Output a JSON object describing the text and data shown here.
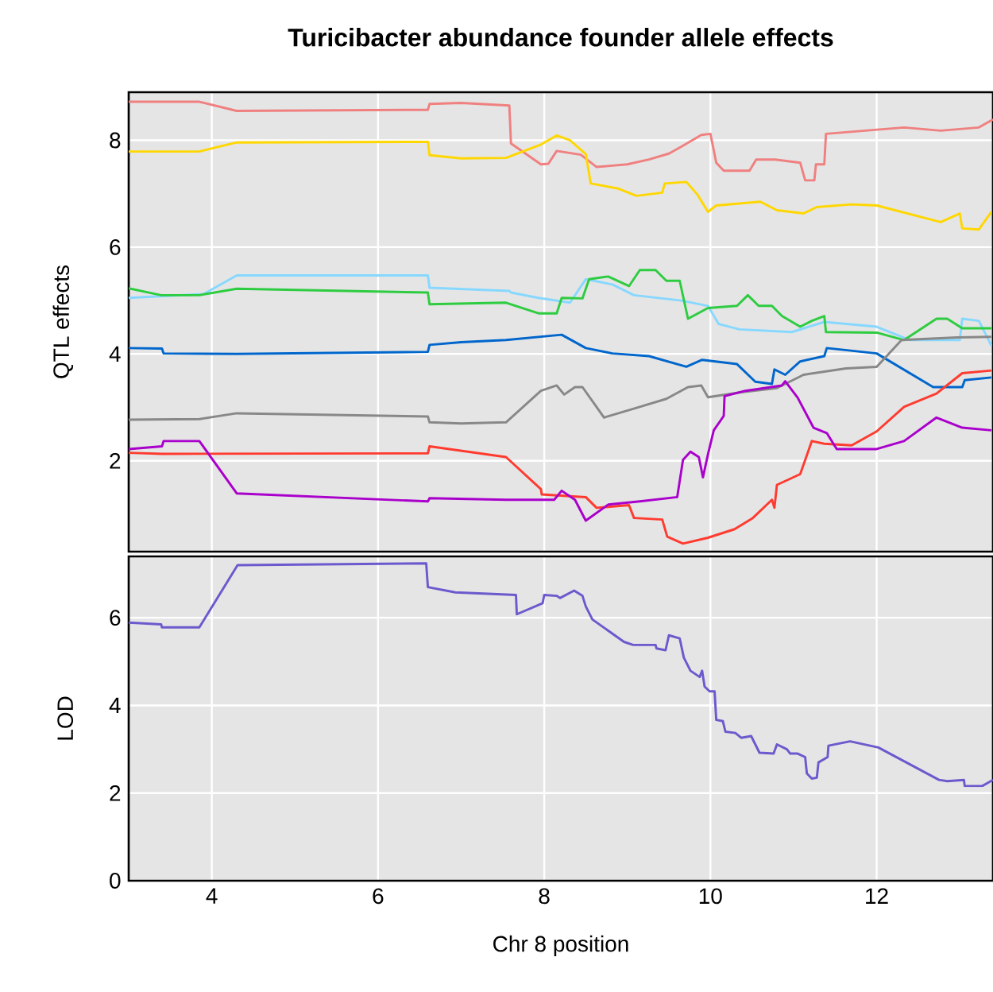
{
  "chart_data": [
    {
      "type": "line",
      "title": "Turicibacter abundance founder allele effects",
      "ylabel": "QTL effects",
      "xlim": [
        3,
        13.4
      ],
      "ylim": [
        0.3,
        8.9
      ],
      "xticks": [
        4,
        6,
        8,
        10,
        12
      ],
      "yticks": [
        2,
        4,
        6,
        8
      ],
      "tick_labels": "y",
      "grid": true,
      "series": [
        {
          "color": "#f08080",
          "x": [
            3,
            3.85,
            4.3,
            6.6,
            6.62,
            7.0,
            7.58,
            7.6,
            7.96,
            8.05,
            8.15,
            8.44,
            8.63,
            9.0,
            9.26,
            9.5,
            9.65,
            9.89,
            10.0,
            10.07,
            10.16,
            10.47,
            10.55,
            10.78,
            11.08,
            11.14,
            11.25,
            11.27,
            11.37,
            11.39,
            12.33,
            12.77,
            13.23,
            13.4
          ],
          "values": [
            8.72,
            8.72,
            8.55,
            8.57,
            8.68,
            8.7,
            8.65,
            7.94,
            7.55,
            7.56,
            7.8,
            7.73,
            7.5,
            7.55,
            7.64,
            7.75,
            7.88,
            8.1,
            8.12,
            7.58,
            7.43,
            7.43,
            7.64,
            7.64,
            7.58,
            7.25,
            7.25,
            7.55,
            7.55,
            8.12,
            8.24,
            8.18,
            8.24,
            8.39
          ]
        },
        {
          "color": "#ffd700",
          "x": [
            3,
            3.85,
            4.3,
            6.6,
            6.62,
            7.0,
            7.54,
            7.96,
            8.15,
            8.31,
            8.5,
            8.56,
            8.88,
            9.11,
            9.42,
            9.45,
            9.71,
            9.84,
            9.97,
            10.07,
            10.6,
            10.8,
            11.12,
            11.28,
            11.7,
            12.0,
            12.77,
            13.0,
            13.03,
            13.23,
            13.38
          ],
          "values": [
            7.79,
            7.79,
            7.96,
            7.97,
            7.72,
            7.66,
            7.67,
            7.92,
            8.09,
            8.0,
            7.74,
            7.19,
            7.1,
            6.96,
            7.02,
            7.19,
            7.22,
            6.99,
            6.66,
            6.78,
            6.85,
            6.69,
            6.63,
            6.75,
            6.8,
            6.78,
            6.47,
            6.63,
            6.35,
            6.33,
            6.66
          ]
        },
        {
          "color": "#87d8ff",
          "x": [
            3,
            3.9,
            4.3,
            6.6,
            6.62,
            7.58,
            7.6,
            7.93,
            8.31,
            8.5,
            8.82,
            9.08,
            9.65,
            9.97,
            10.1,
            10.35,
            10.98,
            11.37,
            12.0,
            12.4,
            13.0,
            13.03,
            13.23,
            13.38
          ],
          "values": [
            5.05,
            5.12,
            5.47,
            5.47,
            5.24,
            5.18,
            5.15,
            5.05,
            4.96,
            5.4,
            5.3,
            5.1,
            5.0,
            4.9,
            4.56,
            4.46,
            4.41,
            4.6,
            4.51,
            4.26,
            4.26,
            4.66,
            4.62,
            4.16
          ]
        },
        {
          "color": "#2ecc40",
          "x": [
            3,
            3.39,
            3.85,
            4.3,
            6.6,
            6.62,
            7.54,
            7.93,
            8.15,
            8.21,
            8.46,
            8.54,
            8.77,
            9.02,
            9.15,
            9.34,
            9.47,
            9.63,
            9.73,
            9.97,
            10.32,
            10.45,
            10.58,
            10.74,
            10.86,
            11.08,
            11.22,
            11.37,
            11.39,
            12.0,
            12.33,
            12.72,
            12.85,
            13.03,
            13.38
          ],
          "values": [
            5.23,
            5.1,
            5.1,
            5.22,
            5.15,
            4.93,
            4.96,
            4.76,
            4.76,
            5.05,
            5.04,
            5.4,
            5.45,
            5.27,
            5.57,
            5.57,
            5.37,
            5.37,
            4.66,
            4.86,
            4.9,
            5.1,
            4.9,
            4.9,
            4.71,
            4.51,
            4.62,
            4.71,
            4.41,
            4.4,
            4.26,
            4.66,
            4.66,
            4.48,
            4.48
          ]
        },
        {
          "color": "#0066cc",
          "x": [
            3,
            3.4,
            3.42,
            4.3,
            6.6,
            6.62,
            7.0,
            7.54,
            8.21,
            8.5,
            8.82,
            9.26,
            9.71,
            9.9,
            10.32,
            10.54,
            10.74,
            10.77,
            10.9,
            11.08,
            11.37,
            11.4,
            12.0,
            12.68,
            13.03,
            13.06,
            13.38
          ],
          "values": [
            4.11,
            4.1,
            4.01,
            4.0,
            4.04,
            4.17,
            4.22,
            4.26,
            4.36,
            4.11,
            4.01,
            3.96,
            3.76,
            3.89,
            3.81,
            3.48,
            3.44,
            3.71,
            3.61,
            3.86,
            3.96,
            4.11,
            4.01,
            3.38,
            3.38,
            3.51,
            3.56
          ]
        },
        {
          "color": "#888888",
          "x": [
            3,
            3.85,
            4.3,
            6.6,
            6.62,
            7.0,
            7.54,
            7.96,
            8.15,
            8.24,
            8.37,
            8.46,
            8.72,
            9.15,
            9.47,
            9.73,
            9.89,
            9.97,
            10.35,
            10.8,
            11.12,
            11.63,
            12.0,
            12.3,
            12.97,
            13.38
          ],
          "values": [
            2.77,
            2.78,
            2.89,
            2.83,
            2.72,
            2.7,
            2.72,
            3.31,
            3.41,
            3.24,
            3.38,
            3.38,
            2.81,
            3.01,
            3.16,
            3.38,
            3.41,
            3.19,
            3.28,
            3.36,
            3.61,
            3.73,
            3.76,
            4.26,
            4.31,
            4.32
          ]
        },
        {
          "color": "#ff3b30",
          "x": [
            3,
            3.4,
            6.6,
            6.62,
            7.54,
            7.96,
            7.97,
            8.5,
            8.63,
            9.02,
            9.08,
            9.42,
            9.48,
            9.67,
            9.97,
            10.29,
            10.51,
            10.74,
            10.77,
            10.8,
            11.08,
            11.22,
            11.37,
            11.7,
            12.0,
            12.33,
            12.72,
            13.03,
            13.38
          ],
          "values": [
            2.15,
            2.13,
            2.14,
            2.27,
            2.07,
            1.47,
            1.37,
            1.32,
            1.12,
            1.17,
            0.93,
            0.9,
            0.58,
            0.45,
            0.56,
            0.72,
            0.93,
            1.27,
            1.12,
            1.55,
            1.75,
            2.37,
            2.32,
            2.29,
            2.55,
            3.01,
            3.26,
            3.64,
            3.69
          ]
        },
        {
          "color": "#aa00cc",
          "x": [
            3,
            3.4,
            3.42,
            3.85,
            4.3,
            6.6,
            6.62,
            7.54,
            8.12,
            8.21,
            8.37,
            8.5,
            8.77,
            9.15,
            9.6,
            9.67,
            9.76,
            9.86,
            9.91,
            9.97,
            10.04,
            10.16,
            10.17,
            10.42,
            10.86,
            10.9,
            11.05,
            11.24,
            11.4,
            11.52,
            12.0,
            12.33,
            12.72,
            13.03,
            13.38
          ],
          "values": [
            2.22,
            2.27,
            2.37,
            2.37,
            1.39,
            1.24,
            1.3,
            1.27,
            1.27,
            1.44,
            1.27,
            0.88,
            1.18,
            1.24,
            1.32,
            2.02,
            2.17,
            2.07,
            1.69,
            2.12,
            2.57,
            2.84,
            3.21,
            3.31,
            3.41,
            3.49,
            3.18,
            2.62,
            2.52,
            2.22,
            2.22,
            2.37,
            2.81,
            2.62,
            2.57
          ]
        }
      ]
    },
    {
      "type": "line",
      "xlabel": "Chr 8 position",
      "ylabel": "LOD",
      "xlim": [
        3,
        13.4
      ],
      "ylim": [
        0,
        7.4
      ],
      "xticks": [
        4,
        6,
        8,
        10,
        12
      ],
      "yticks": [
        0,
        2,
        4,
        6
      ],
      "grid": true,
      "series": [
        {
          "color": "#6a5acd",
          "x": [
            3.0,
            3.39,
            3.4,
            3.85,
            4.31,
            6.58,
            6.6,
            6.93,
            7.66,
            7.67,
            7.98,
            8.0,
            8.15,
            8.19,
            8.36,
            8.46,
            8.5,
            8.58,
            8.96,
            9.07,
            9.34,
            9.35,
            9.46,
            9.5,
            9.63,
            9.68,
            9.76,
            9.87,
            9.9,
            9.93,
            9.99,
            10.05,
            10.07,
            10.15,
            10.18,
            10.3,
            10.37,
            10.49,
            10.59,
            10.76,
            10.8,
            10.92,
            10.96,
            11.05,
            11.14,
            11.16,
            11.22,
            11.28,
            11.3,
            11.41,
            11.42,
            11.68,
            12.02,
            12.75,
            12.85,
            13.05,
            13.06,
            13.27,
            13.4
          ],
          "values": [
            5.89,
            5.85,
            5.78,
            5.78,
            7.2,
            7.24,
            6.7,
            6.58,
            6.52,
            6.08,
            6.33,
            6.52,
            6.5,
            6.45,
            6.62,
            6.5,
            6.26,
            5.96,
            5.45,
            5.38,
            5.38,
            5.3,
            5.26,
            5.6,
            5.53,
            5.09,
            4.79,
            4.65,
            4.79,
            4.43,
            4.32,
            4.32,
            3.67,
            3.64,
            3.4,
            3.37,
            3.26,
            3.3,
            2.92,
            2.9,
            3.11,
            3.0,
            2.9,
            2.9,
            2.82,
            2.45,
            2.33,
            2.35,
            2.7,
            2.82,
            3.08,
            3.18,
            3.04,
            2.3,
            2.27,
            2.3,
            2.16,
            2.16,
            2.3
          ]
        }
      ]
    }
  ]
}
